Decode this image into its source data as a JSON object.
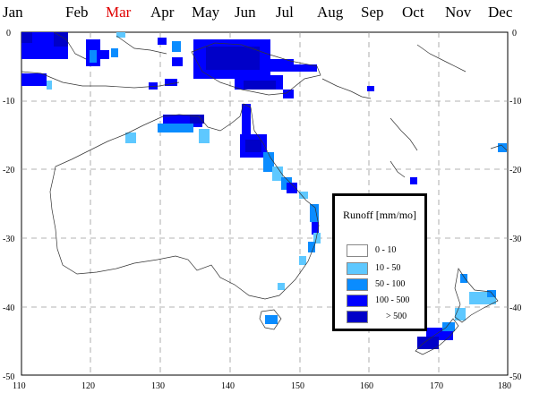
{
  "months": [
    "Jan",
    "Feb",
    "Mar",
    "Apr",
    "May",
    "Jun",
    "Jul",
    "Aug",
    "Sep",
    "Oct",
    "Nov",
    "Dec"
  ],
  "selected_month": "Mar",
  "lat_ticks": [
    "0",
    "-10",
    "-20",
    "-30",
    "-40",
    "-50"
  ],
  "lon_ticks": [
    "110",
    "120",
    "130",
    "140",
    "150",
    "160",
    "170",
    "180"
  ],
  "legend": {
    "title": "Runoff [mm/mo]",
    "items": [
      {
        "label": "0  -  10",
        "color": "#ffffff"
      },
      {
        "label": "10  -  50",
        "color": "#5ec8ff"
      },
      {
        "label": "50  -  100",
        "color": "#0a8cff"
      },
      {
        "label": "100  -  500",
        "color": "#0000ff"
      },
      {
        "label": "> 500",
        "color": "#0000c8"
      }
    ]
  },
  "colors": {
    "grid": "#9a9a9a",
    "coast": "#333333",
    "selected_month": "#e00000"
  }
}
